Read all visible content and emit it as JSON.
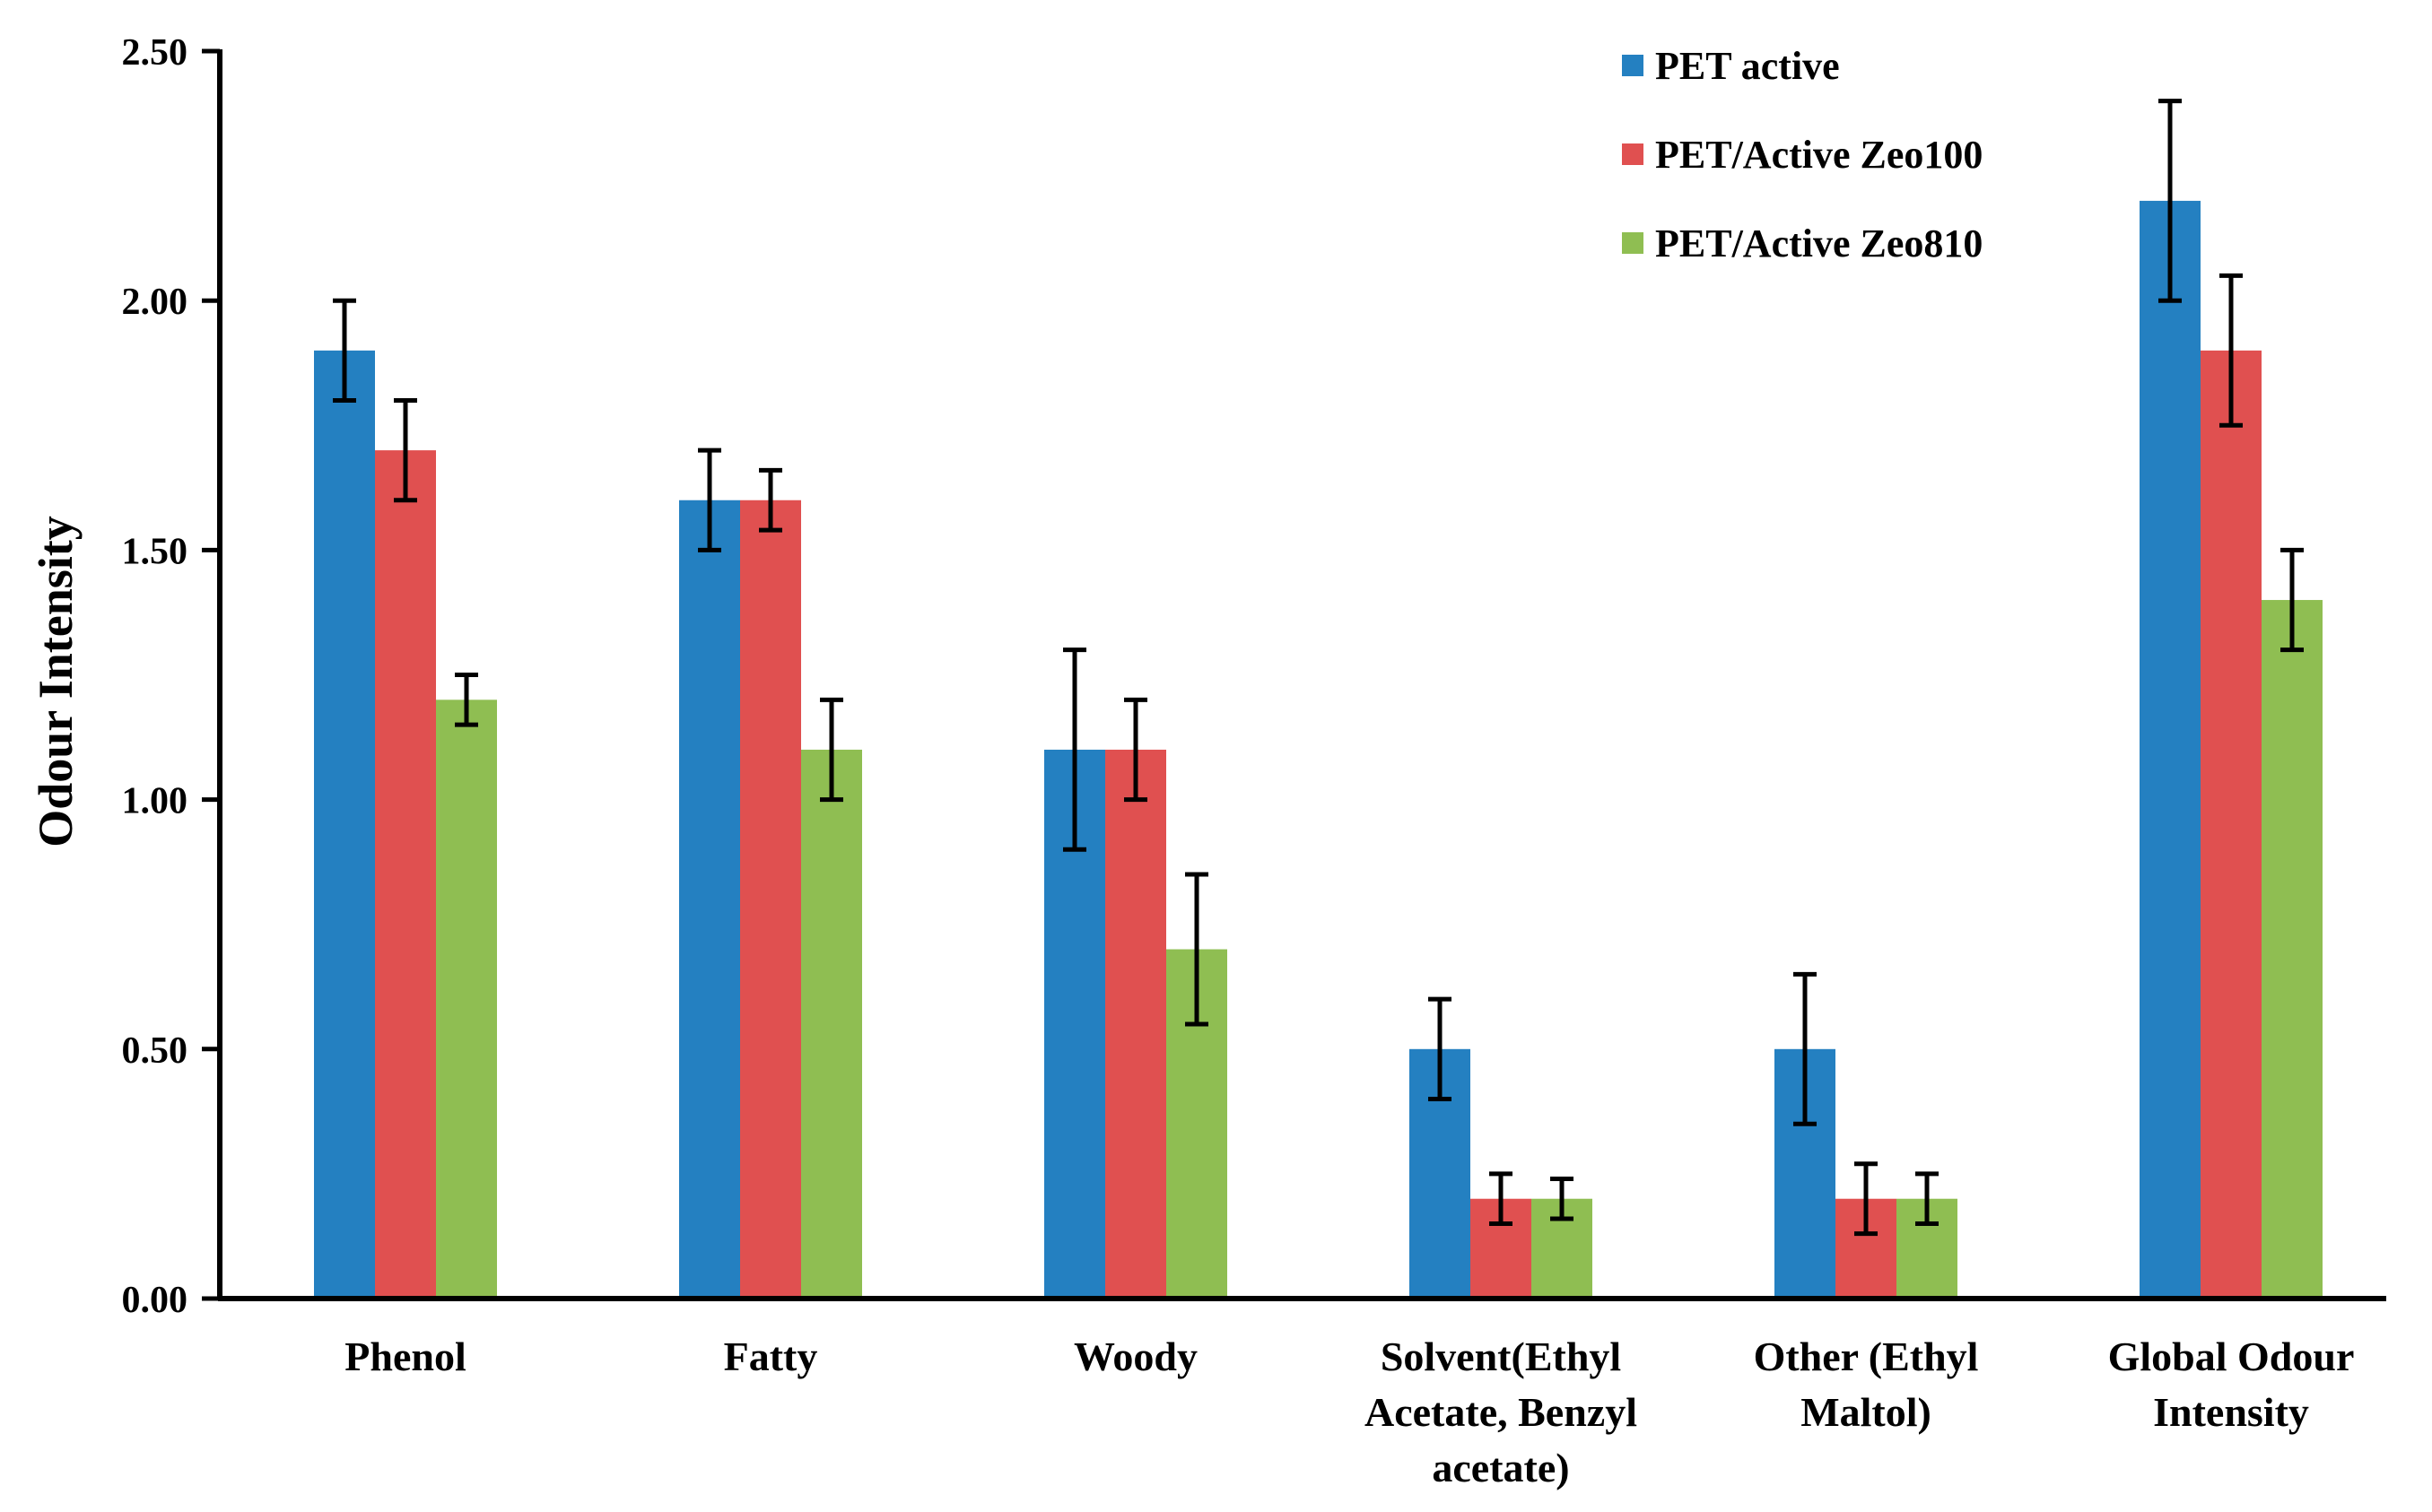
{
  "chart_data": {
    "type": "bar",
    "title": "",
    "xlabel": "",
    "ylabel": "Odour Intensity",
    "ylim": [
      0,
      2.5
    ],
    "yticks": [
      0,
      0.5,
      1.0,
      1.5,
      2.0,
      2.5
    ],
    "ytick_labels": [
      "0.00",
      "0.50",
      "1.00",
      "1.50",
      "2.00",
      "2.50"
    ],
    "grid": false,
    "legend_position": "top-right",
    "categories": [
      [
        "Phenol"
      ],
      [
        "Fatty"
      ],
      [
        "Woody"
      ],
      [
        "Solvent(Ethyl",
        "Acetate, Benzyl",
        "acetate)"
      ],
      [
        "Other (Ethyl",
        "Maltol)"
      ],
      [
        "Global Odour",
        "Intensity"
      ]
    ],
    "series": [
      {
        "name": "PET active",
        "color": "#2480C1",
        "values": [
          1.9,
          1.6,
          1.1,
          0.5,
          0.5,
          2.2
        ],
        "errors": [
          0.1,
          0.1,
          0.2,
          0.1,
          0.15,
          0.2
        ]
      },
      {
        "name": "PET/Active Zeo100",
        "color": "#E05050",
        "values": [
          1.7,
          1.6,
          1.1,
          0.2,
          0.2,
          1.9
        ],
        "errors": [
          0.1,
          0.06,
          0.1,
          0.05,
          0.07,
          0.15
        ]
      },
      {
        "name": "PET/Active Zeo810",
        "color": "#8FBE52",
        "values": [
          1.2,
          1.1,
          0.7,
          0.2,
          0.2,
          1.4
        ],
        "errors": [
          0.05,
          0.1,
          0.15,
          0.04,
          0.05,
          0.1
        ]
      }
    ]
  }
}
